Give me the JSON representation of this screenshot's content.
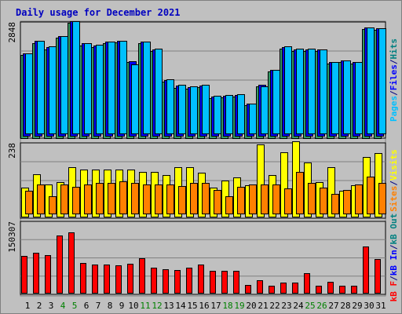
{
  "title": "Daily usage for December 2021",
  "chart_data": {
    "type": "bar",
    "categories": [
      "1",
      "2",
      "3",
      "4",
      "5",
      "6",
      "7",
      "8",
      "9",
      "10",
      "11",
      "12",
      "13",
      "14",
      "15",
      "16",
      "17",
      "18",
      "19",
      "20",
      "21",
      "22",
      "23",
      "24",
      "25",
      "26",
      "27",
      "28",
      "29",
      "30",
      "31"
    ],
    "weekend_days": [
      "4",
      "5",
      "11",
      "12",
      "18",
      "19",
      "25",
      "26"
    ],
    "grid": true,
    "panels": [
      {
        "name": "hits-files-pages",
        "ymax": 2848,
        "ymax_label": "2848",
        "legend": [
          {
            "text": "Pages",
            "color": "#00c0ff"
          },
          {
            "text": "/",
            "color": "#000080"
          },
          {
            "text": "Files",
            "color": "#0000ff"
          },
          {
            "text": "/",
            "color": "#000080"
          },
          {
            "text": "Hits",
            "color": "#008080"
          }
        ],
        "series": [
          {
            "name": "Hits",
            "color": "#339966",
            "values": [
              2035,
              2330,
              2180,
              2460,
              2830,
              2280,
              2240,
              2320,
              2350,
              1860,
              2320,
              2130,
              1380,
              1240,
              1220,
              1250,
              980,
              1000,
              1020,
              810,
              1270,
              1630,
              2200,
              2140,
              2140,
              2130,
              1820,
              1860,
              1820,
              2680,
              2660
            ]
          },
          {
            "name": "Files",
            "color": "#0000ff",
            "values": [
              2020,
              2320,
              2170,
              2440,
              2800,
              2270,
              2220,
              2300,
              2330,
              1820,
              2310,
              2110,
              1370,
              1240,
              1200,
              1240,
              960,
              990,
              1010,
              790,
              1250,
              1610,
              2180,
              2120,
              2120,
              2110,
              1810,
              1850,
              1810,
              2660,
              2640
            ]
          },
          {
            "name": "Pages",
            "color": "#00c0ff",
            "values": [
              1960,
              2270,
              2130,
              2390,
              2760,
              2210,
              2170,
              2250,
              2270,
              1700,
              2260,
              2070,
              1320,
              1190,
              1160,
              1190,
              920,
              950,
              960,
              730,
              1150,
              1560,
              2130,
              2070,
              2070,
              2060,
              1760,
              1790,
              1750,
              2600,
              2580
            ]
          }
        ]
      },
      {
        "name": "visits-sites",
        "ymax": 238,
        "ymax_label": "238",
        "legend": [
          {
            "text": "Sites",
            "color": "#ff8000"
          },
          {
            "text": "/",
            "color": "#000080"
          },
          {
            "text": "Visits",
            "color": "#ffff00"
          }
        ],
        "series": [
          {
            "name": "Visits",
            "color": "#ffff00",
            "values": [
              92,
              133,
              102,
              109,
              155,
              148,
              148,
              148,
              148,
              148,
              141,
              141,
              131,
              156,
              156,
              138,
              92,
              113,
              124,
              99,
              228,
              131,
              204,
              238,
              171,
              109,
              155,
              81,
              99,
              189,
              202
            ]
          },
          {
            "name": "Sites",
            "color": "#ff8000",
            "values": [
              72,
              92,
              55,
              92,
              85,
              92,
              97,
              97,
              102,
              97,
              92,
              92,
              92,
              87,
              97,
              97,
              74,
              55,
              85,
              92,
              92,
              92,
              79,
              131,
              97,
              82,
              62,
              74,
              92,
              117,
              97
            ]
          }
        ]
      },
      {
        "name": "kbin-kbout-kbf",
        "ymax": 150307,
        "ymax_label": "150307",
        "legend": [
          {
            "text": "kB F",
            "color": "#ff0000"
          },
          {
            "text": "/",
            "color": "#000080"
          },
          {
            "text": "kB In",
            "color": "#0000ff"
          },
          {
            "text": "/",
            "color": "#000080"
          },
          {
            "text": "kB Out",
            "color": "#008080"
          }
        ],
        "series": [
          {
            "name": "kB F",
            "color": "#ff0000",
            "values": [
              75800,
              83200,
              76800,
              118500,
              123800,
              61200,
              58400,
              58900,
              57300,
              59300,
              71900,
              51900,
              48000,
              46300,
              52500,
              58900,
              45000,
              45700,
              45000,
              16700,
              26000,
              14400,
              20300,
              20300,
              40000,
              14400,
              23200,
              15300,
              14500,
              95500,
              68700
            ]
          }
        ]
      }
    ]
  }
}
